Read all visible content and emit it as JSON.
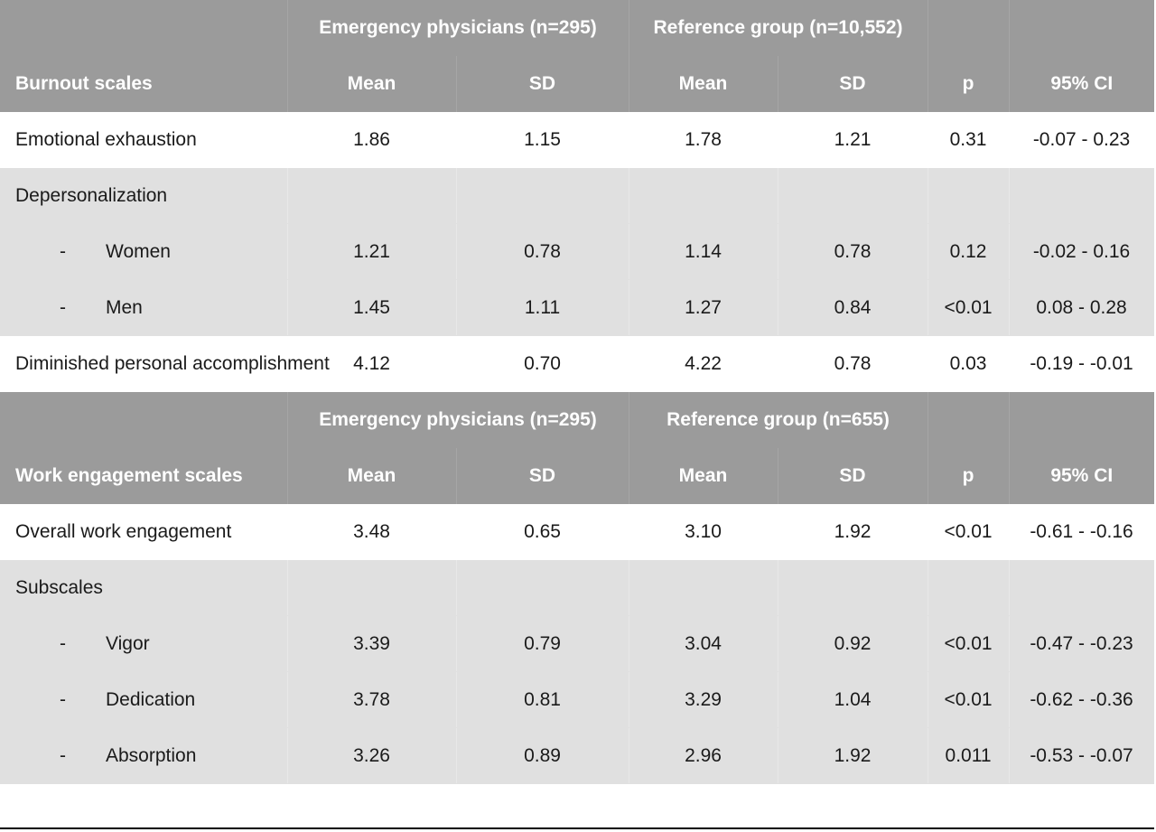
{
  "burnout": {
    "group1": "Emergency physicians (n=295)",
    "group2": "Reference group (n=10,552)",
    "label_header": "Burnout scales",
    "col_mean1": "Mean",
    "col_sd1": "SD",
    "col_mean2": "Mean",
    "col_sd2": "SD",
    "col_p": "p",
    "col_ci": "95% CI",
    "rows": [
      {
        "label": "Emotional exhaustion",
        "mean1": "1.86",
        "sd1": "1.15",
        "mean2": "1.78",
        "sd2": "1.21",
        "p": "0.31",
        "ci": "-0.07 - 0.23"
      },
      {
        "label": "Depersonalization"
      },
      {
        "dash": "-",
        "label": "Women",
        "mean1": "1.21",
        "sd1": "0.78",
        "mean2": "1.14",
        "sd2": "0.78",
        "p": "0.12",
        "ci": "-0.02 - 0.16"
      },
      {
        "dash": "-",
        "label": "Men",
        "mean1": "1.45",
        "sd1": "1.11",
        "mean2": "1.27",
        "sd2": "0.84",
        "p": "<0.01",
        "ci": "0.08 - 0.28"
      },
      {
        "label": "Diminished personal accomplishment",
        "mean1": "4.12",
        "sd1": "0.70",
        "mean2": "4.22",
        "sd2": "0.78",
        "p": "0.03",
        "ci": "-0.19 - -0.01"
      }
    ]
  },
  "engagement": {
    "group1": "Emergency physicians (n=295)",
    "group2": "Reference group (n=655)",
    "label_header": "Work engagement scales",
    "col_mean1": "Mean",
    "col_sd1": "SD",
    "col_mean2": "Mean",
    "col_sd2": "SD",
    "col_p": "p",
    "col_ci": "95% CI",
    "rows": [
      {
        "label": "Overall work engagement",
        "mean1": "3.48",
        "sd1": "0.65",
        "mean2": "3.10",
        "sd2": "1.92",
        "p": "<0.01",
        "ci": "-0.61 - -0.16"
      },
      {
        "label": "Subscales"
      },
      {
        "dash": "-",
        "label": "Vigor",
        "mean1": "3.39",
        "sd1": "0.79",
        "mean2": "3.04",
        "sd2": "0.92",
        "p": "<0.01",
        "ci": "-0.47 - -0.23"
      },
      {
        "dash": "-",
        "label": "Dedication",
        "mean1": "3.78",
        "sd1": "0.81",
        "mean2": "3.29",
        "sd2": "1.04",
        "p": "<0.01",
        "ci": "-0.62 - -0.36"
      },
      {
        "dash": "-",
        "label": "Absorption",
        "mean1": "3.26",
        "sd1": "0.89",
        "mean2": "2.96",
        "sd2": "1.92",
        "p": "0.011",
        "ci": "-0.53 - -0.07"
      }
    ]
  },
  "colors": {
    "header_bg": "#9b9b9b",
    "band_bg": "#e0e0e0",
    "header_text": "#ffffff"
  }
}
